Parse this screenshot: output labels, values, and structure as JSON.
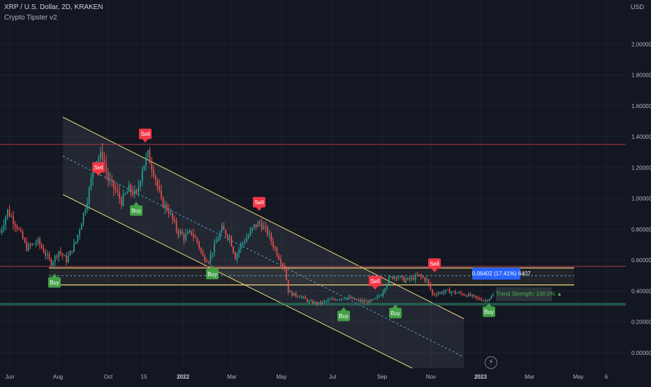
{
  "header": {
    "symbol_line": "XRP / U.S. Dollar, 2D, KRAKEN",
    "indicator_name": "Crypto Tipster v2"
  },
  "price_axis": {
    "currency": "USD",
    "ticks": [
      "2.00000",
      "1.80000",
      "1.60000",
      "1.40000",
      "1.20000",
      "1.00000",
      "0.80000",
      "0.60000",
      "0.40000",
      "0.20000",
      "0.00000"
    ]
  },
  "time_axis": {
    "ticks": [
      "Jun",
      "Aug",
      "Oct",
      "15",
      "2022",
      "Mar",
      "May",
      "Jul",
      "Sep",
      "Nov",
      "2023",
      "Mar",
      "May",
      "6"
    ]
  },
  "measure_label": "0.06402 (17.41%) 6407",
  "trend_label": "Trend Strength: 100.0% ▲",
  "signals": [
    {
      "label": "Buy",
      "type": "buy"
    },
    {
      "label": "Sell",
      "type": "sell"
    },
    {
      "label": "Buy",
      "type": "buy"
    },
    {
      "label": "Sell",
      "type": "sell"
    },
    {
      "label": "Buy",
      "type": "buy"
    },
    {
      "label": "Sell",
      "type": "sell"
    },
    {
      "label": "Buy",
      "type": "buy"
    },
    {
      "label": "Sell",
      "type": "sell"
    },
    {
      "label": "Buy",
      "type": "buy"
    },
    {
      "label": "Sell",
      "type": "sell"
    },
    {
      "label": "Buy",
      "type": "buy"
    }
  ],
  "colors": {
    "background": "#131722",
    "up_candle": "#26a69a",
    "down_candle": "#ef5350",
    "buy": "#43a047",
    "sell": "#f23645",
    "channel_line": "#f5d77e",
    "grid": "#1e222d"
  },
  "chart_data": {
    "type": "candlestick",
    "title": "XRP / U.S. Dollar, 2D, KRAKEN",
    "ylabel": "USD",
    "ylim": [
      -0.08,
      2.24
    ],
    "x_ticks": [
      "Jun",
      "Aug",
      "Oct",
      "15",
      "2022",
      "Mar",
      "May",
      "Jul",
      "Sep",
      "Nov",
      "2023",
      "Mar",
      "May",
      "6"
    ],
    "y_ticks": [
      0.0,
      0.2,
      0.4,
      0.6,
      0.8,
      1.0,
      1.2,
      1.4,
      1.6,
      1.8,
      2.0
    ],
    "price_path": [
      [
        0,
        0.78
      ],
      [
        4,
        0.92
      ],
      [
        9,
        0.82
      ],
      [
        14,
        0.68
      ],
      [
        20,
        0.72
      ],
      [
        27,
        0.58
      ],
      [
        31,
        0.66
      ],
      [
        35,
        0.6
      ],
      [
        40,
        0.72
      ],
      [
        44,
        0.9
      ],
      [
        47,
        1.05
      ],
      [
        50,
        1.25
      ],
      [
        54,
        1.28
      ],
      [
        57,
        1.12
      ],
      [
        61,
        1.05
      ],
      [
        64,
        0.98
      ],
      [
        68,
        1.06
      ],
      [
        72,
        1.02
      ],
      [
        75,
        1.2
      ],
      [
        78,
        1.28
      ],
      [
        81,
        1.18
      ],
      [
        85,
        0.98
      ],
      [
        89,
        0.92
      ],
      [
        93,
        0.8
      ],
      [
        97,
        0.75
      ],
      [
        101,
        0.78
      ],
      [
        104,
        0.72
      ],
      [
        107,
        0.62
      ],
      [
        110,
        0.6
      ],
      [
        114,
        0.72
      ],
      [
        117,
        0.8
      ],
      [
        121,
        0.75
      ],
      [
        124,
        0.62
      ],
      [
        127,
        0.7
      ],
      [
        131,
        0.76
      ],
      [
        134,
        0.82
      ],
      [
        137,
        0.84
      ],
      [
        141,
        0.78
      ],
      [
        144,
        0.7
      ],
      [
        147,
        0.62
      ],
      [
        150,
        0.55
      ],
      [
        152,
        0.4
      ],
      [
        154,
        0.38
      ],
      [
        158,
        0.37
      ],
      [
        163,
        0.33
      ],
      [
        168,
        0.32
      ],
      [
        173,
        0.34
      ],
      [
        178,
        0.35
      ],
      [
        183,
        0.36
      ],
      [
        188,
        0.34
      ],
      [
        193,
        0.33
      ],
      [
        197,
        0.34
      ],
      [
        201,
        0.38
      ],
      [
        205,
        0.48
      ],
      [
        209,
        0.5
      ],
      [
        213,
        0.47
      ],
      [
        217,
        0.48
      ],
      [
        221,
        0.5
      ],
      [
        225,
        0.47
      ],
      [
        228,
        0.38
      ],
      [
        232,
        0.39
      ],
      [
        236,
        0.4
      ],
      [
        240,
        0.39
      ],
      [
        244,
        0.38
      ],
      [
        248,
        0.37
      ],
      [
        252,
        0.35
      ],
      [
        256,
        0.34
      ],
      [
        260,
        0.37
      ]
    ],
    "levels": {
      "sell_resistance": 1.35,
      "upper_band": 0.56,
      "upper_band_inner": 0.55,
      "range_mid": 0.5,
      "lower_band_inner": 0.44,
      "lower_band": 0.43,
      "support_upper": 0.32,
      "support_lower": 0.31
    },
    "channel": {
      "upper": [
        [
          0.52,
          0.335
        ],
        [
          658,
          0.22
        ]
      ],
      "lower": [
        [
          -0.02,
          0.46
        ],
        [
          594,
          -0.07
        ]
      ]
    }
  }
}
